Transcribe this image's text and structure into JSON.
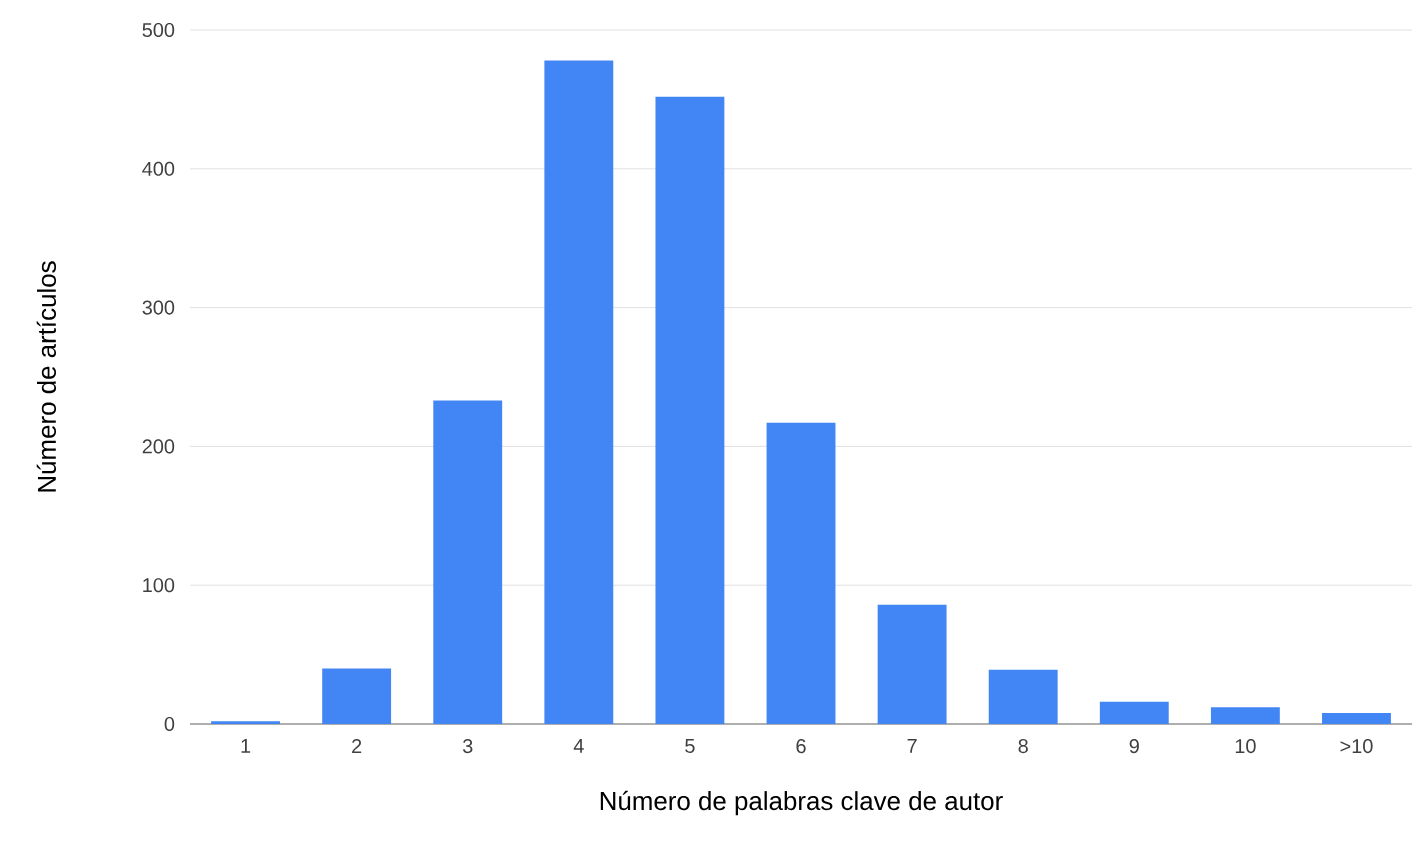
{
  "chart_data": {
    "type": "bar",
    "xlabel": "Número de palabras clave de autor",
    "ylabel": "Número de artículos",
    "categories": [
      "1",
      "2",
      "3",
      "4",
      "5",
      "6",
      "7",
      "8",
      "9",
      "10",
      ">10"
    ],
    "values": [
      2,
      40,
      233,
      478,
      452,
      217,
      86,
      39,
      16,
      12,
      8
    ],
    "color": "#4285f4",
    "ylim": [
      0,
      500
    ],
    "yticks": [
      0,
      100,
      200,
      300,
      400,
      500
    ],
    "grid": "y"
  }
}
